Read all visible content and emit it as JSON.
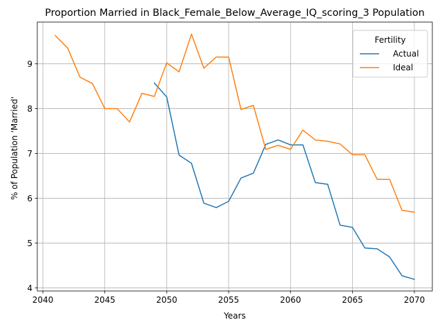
{
  "chart_data": {
    "type": "line",
    "title": "Proportion Married in Black_Female_Below_Average_IQ_scoring_3 Population",
    "xlabel": "Years",
    "ylabel": "% of Population 'Married'",
    "xlim": [
      2039.55,
      2071.45
    ],
    "ylim": [
      3.93,
      9.93
    ],
    "x_ticks": [
      2040,
      2045,
      2050,
      2055,
      2060,
      2065,
      2070
    ],
    "y_ticks": [
      4,
      5,
      6,
      7,
      8,
      9
    ],
    "grid": true,
    "legend": {
      "title": "Fertility",
      "placement": "top-right"
    },
    "series": [
      {
        "name": "Actual",
        "color": "#1f77b4",
        "x": [
          2049,
          2050,
          2051,
          2052,
          2053,
          2054,
          2055,
          2056,
          2057,
          2058,
          2059,
          2060,
          2061,
          2062,
          2063,
          2064,
          2065,
          2066,
          2067,
          2068,
          2069,
          2070
        ],
        "values": [
          8.57,
          8.26,
          6.96,
          6.78,
          5.89,
          5.79,
          5.93,
          6.45,
          6.56,
          7.2,
          7.3,
          7.19,
          7.19,
          6.35,
          6.31,
          5.4,
          5.35,
          4.89,
          4.87,
          4.69,
          4.27,
          4.19
        ]
      },
      {
        "name": "Ideal",
        "color": "#ff7f0e",
        "x": [
          2041,
          2042,
          2043,
          2044,
          2045,
          2046,
          2047,
          2048,
          2049,
          2050,
          2051,
          2052,
          2053,
          2054,
          2055,
          2056,
          2057,
          2058,
          2059,
          2060,
          2061,
          2062,
          2063,
          2064,
          2065,
          2066,
          2067,
          2068,
          2069,
          2070
        ],
        "values": [
          9.63,
          9.35,
          8.7,
          8.56,
          8.0,
          8.0,
          7.7,
          8.34,
          8.27,
          9.02,
          8.82,
          9.66,
          8.9,
          9.15,
          9.15,
          7.98,
          8.07,
          7.09,
          7.18,
          7.09,
          7.52,
          7.3,
          7.27,
          7.21,
          6.97,
          6.97,
          6.42,
          6.42,
          5.73,
          5.69
        ]
      }
    ]
  }
}
